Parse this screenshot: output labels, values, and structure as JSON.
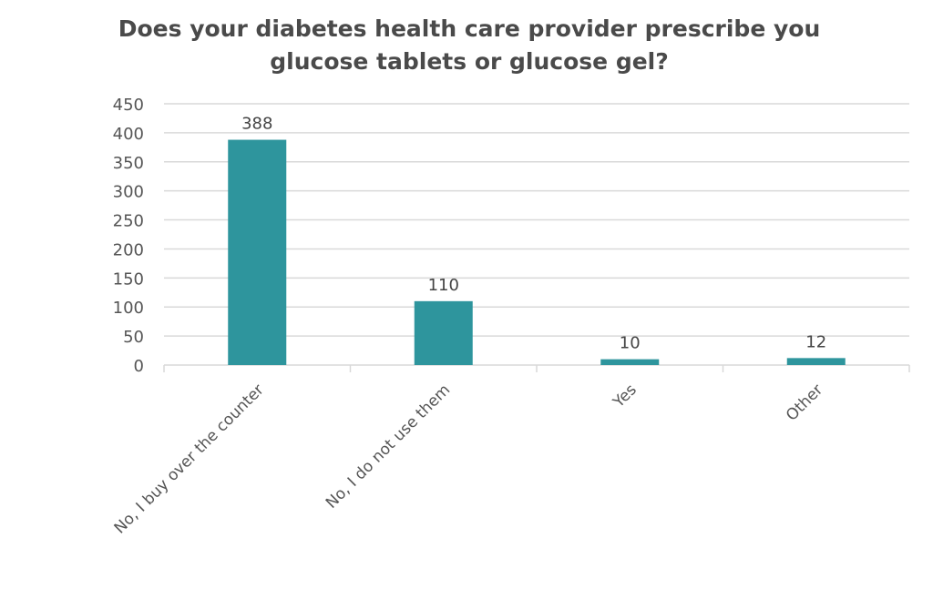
{
  "chart_data": {
    "type": "bar",
    "title": "Does your diabetes health care provider prescribe you glucose tablets or glucose gel?",
    "title_lines": [
      "Does your diabetes health care provider prescribe you",
      "glucose tablets or glucose gel?"
    ],
    "categories": [
      "No, I buy over the counter",
      "No, I do not use them",
      "Yes",
      "Other"
    ],
    "values": [
      388,
      110,
      10,
      12
    ],
    "data_labels": [
      "388",
      "110",
      "10",
      "12"
    ],
    "xlabel": "",
    "ylabel": "",
    "ylim": [
      0,
      450
    ],
    "yticks": [
      0,
      50,
      100,
      150,
      200,
      250,
      300,
      350,
      400,
      450
    ],
    "grid": true,
    "legend": "none",
    "bar_color": "#2e959d",
    "grid_color": "#d9d9d9"
  }
}
